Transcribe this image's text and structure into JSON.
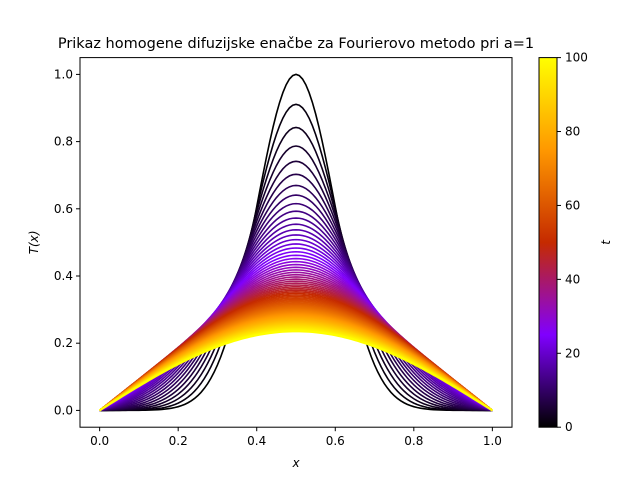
{
  "chart_data": {
    "type": "line",
    "title": "Prikaz homogene difuzijske enačbe za Fourierovo metodo pri a=1",
    "xlabel": "x",
    "ylabel": "T(x)",
    "xlim": [
      -0.05,
      1.05
    ],
    "ylim": [
      -0.05,
      1.05
    ],
    "x_ticks": [
      "0.0",
      "0.2",
      "0.4",
      "0.6",
      "0.8",
      "1.0"
    ],
    "y_ticks": [
      "0.0",
      "0.2",
      "0.4",
      "0.6",
      "0.8",
      "1.0"
    ],
    "colorbar": {
      "label": "t",
      "range": [
        0,
        100
      ],
      "ticks": [
        "0",
        "20",
        "40",
        "60",
        "80",
        "100"
      ],
      "colormap": "gnuplot",
      "colors": [
        "#000000",
        "#8000ff",
        "#c52a00",
        "#ff9800",
        "#ffff00"
      ]
    },
    "series_description": "Family of curves T(x,t) for t from 0 to 100; initial profile is a bell-shaped peak of height 1 at x=0.5 (zero at x=0 and x=1), relaxing toward a sine-like arc with peak about 0.24 at t=100",
    "curve_samples": {
      "x": [
        0.0,
        0.1,
        0.2,
        0.3,
        0.4,
        0.5,
        0.6,
        0.7,
        0.8,
        0.9,
        1.0
      ],
      "t0": [
        0.0,
        0.04,
        0.13,
        0.3,
        0.7,
        1.0,
        0.7,
        0.3,
        0.13,
        0.04,
        0.0
      ],
      "t100": [
        0.0,
        0.07,
        0.14,
        0.19,
        0.225,
        0.235,
        0.225,
        0.19,
        0.14,
        0.07,
        0.0
      ]
    },
    "grid": false
  }
}
